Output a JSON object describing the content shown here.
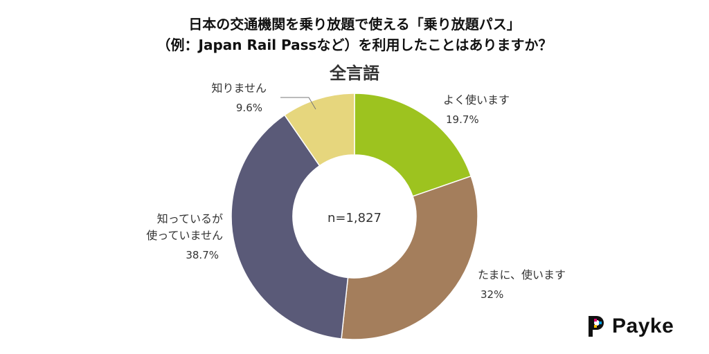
{
  "title_lines": [
    "日本の交通機関を乗り放題で使える「乗り放題パス」",
    "（例：Japan Rail Passなど）を利用したことはありますか？"
  ],
  "subtitle": "全言語",
  "center_label": "n=1,827",
  "brand": {
    "name": "Payke"
  },
  "chart_data": {
    "type": "pie",
    "donut": true,
    "n": 1827,
    "segments": [
      {
        "label": "よく使います",
        "value": 19.7,
        "pct_text": "19.7%",
        "color": "#9dc31f"
      },
      {
        "label": "たまに、使います",
        "value": 32,
        "pct_text": "32%",
        "color": "#a47e5c"
      },
      {
        "label": "知っているが\n使っていません",
        "value": 38.7,
        "pct_text": "38.7%",
        "color": "#5a5a78"
      },
      {
        "label": "知りません",
        "value": 9.6,
        "pct_text": "9.6%",
        "color": "#e6d67d"
      }
    ]
  }
}
